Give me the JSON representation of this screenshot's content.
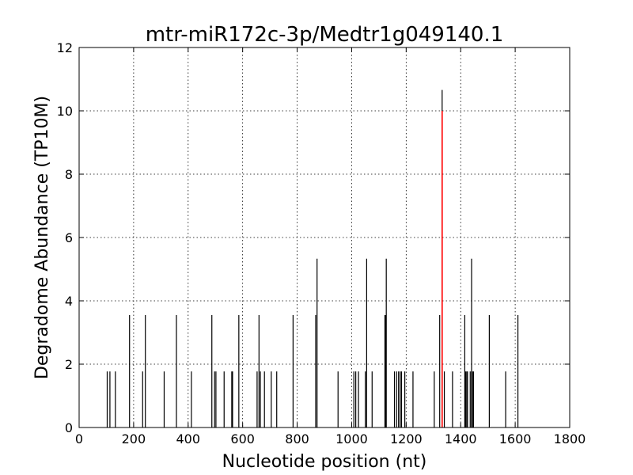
{
  "chart_data": {
    "type": "bar",
    "title": "mtr-miR172c-3p/Medtr1g049140.1",
    "xlabel": "Nucleotide position (nt)",
    "ylabel": "Degradome Abundance (TP10M)",
    "xlim": [
      0,
      1800
    ],
    "ylim": [
      0,
      12
    ],
    "xticks": [
      0,
      200,
      400,
      600,
      800,
      1000,
      1200,
      1400,
      1600,
      1800
    ],
    "yticks": [
      0,
      2,
      4,
      6,
      8,
      10,
      12
    ],
    "grid": true,
    "bar_color": "#000000",
    "highlight_color": "#ff0000",
    "series": [
      {
        "x": [
          103,
          113,
          133,
          185,
          233,
          243,
          312,
          357,
          412,
          487,
          497,
          502,
          532,
          560,
          563,
          586,
          653,
          660,
          665,
          680,
          705,
          725,
          785,
          868,
          873,
          950,
          1008,
          1015,
          1025,
          1050,
          1055,
          1075,
          1122,
          1124,
          1127,
          1157,
          1165,
          1172,
          1178,
          1183,
          1195,
          1225,
          1303,
          1323,
          1340,
          1370,
          1415,
          1418,
          1422,
          1425,
          1435,
          1440,
          1443,
          1447,
          1505,
          1565,
          1610
        ],
        "values": [
          1.77,
          1.77,
          1.77,
          3.55,
          1.77,
          3.55,
          1.77,
          3.55,
          1.77,
          3.55,
          1.77,
          1.77,
          1.77,
          1.77,
          1.77,
          3.55,
          1.77,
          3.55,
          1.77,
          1.77,
          1.77,
          1.77,
          3.55,
          3.55,
          5.33,
          1.77,
          1.77,
          1.77,
          1.77,
          1.77,
          5.33,
          1.77,
          3.55,
          3.55,
          5.33,
          1.77,
          1.77,
          1.77,
          1.77,
          1.77,
          1.77,
          1.77,
          1.77,
          3.55,
          1.77,
          1.77,
          3.55,
          1.77,
          1.77,
          1.77,
          1.77,
          5.33,
          1.77,
          1.77,
          3.55,
          1.77,
          3.55
        ]
      },
      {
        "x": [
          1332
        ],
        "values": [
          10.66
        ],
        "highlight": [
          10.0
        ]
      }
    ]
  }
}
